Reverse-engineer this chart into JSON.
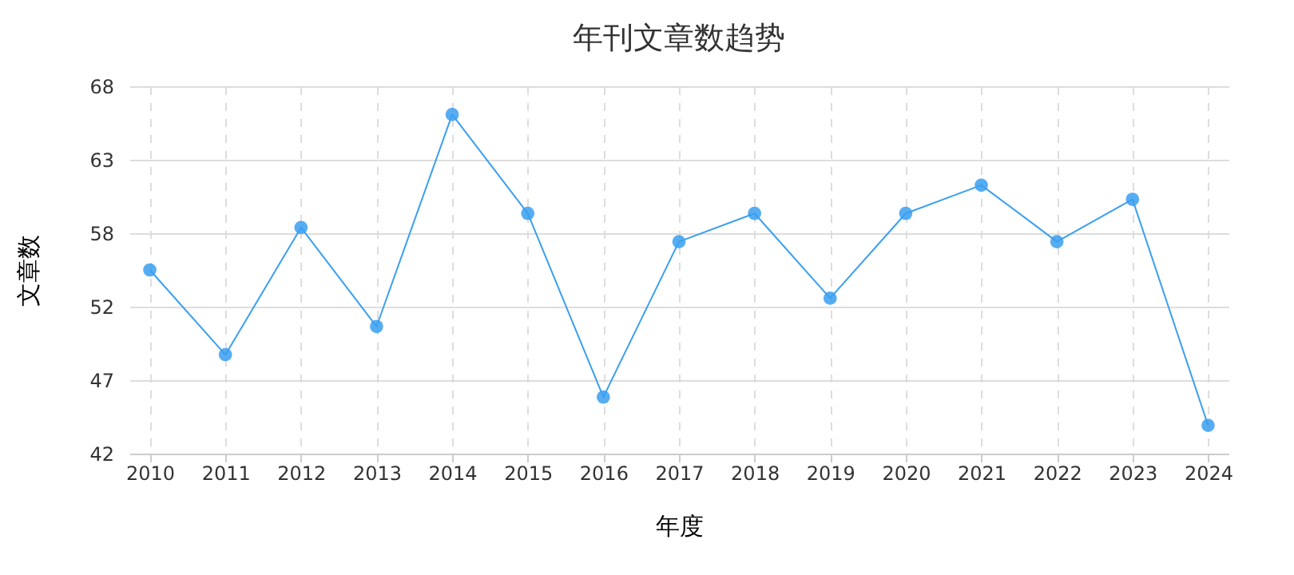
{
  "chart_data": {
    "type": "line",
    "title": "年刊文章数趋势",
    "xlabel": "年度",
    "ylabel": "文章数",
    "categories": [
      "2010",
      "2011",
      "2012",
      "2013",
      "2014",
      "2015",
      "2016",
      "2017",
      "2018",
      "2019",
      "2020",
      "2021",
      "2022",
      "2023",
      "2024"
    ],
    "series": [
      {
        "color": "#3a9ff0",
        "values": [
          55,
          49,
          58,
          51,
          66,
          59,
          46,
          57,
          59,
          53,
          59,
          61,
          57,
          60,
          44
        ]
      }
    ],
    "ylim": [
      42,
      68
    ],
    "yticks": [
      42,
      {
        "value": 47.2,
        "label": "47"
      },
      {
        "value": 52.4,
        "label": "52"
      },
      {
        "value": 57.6,
        "label": "58"
      },
      {
        "value": 62.8,
        "label": "63"
      },
      68
    ],
    "grid": true,
    "marker": "circle",
    "line_style": "solid"
  }
}
